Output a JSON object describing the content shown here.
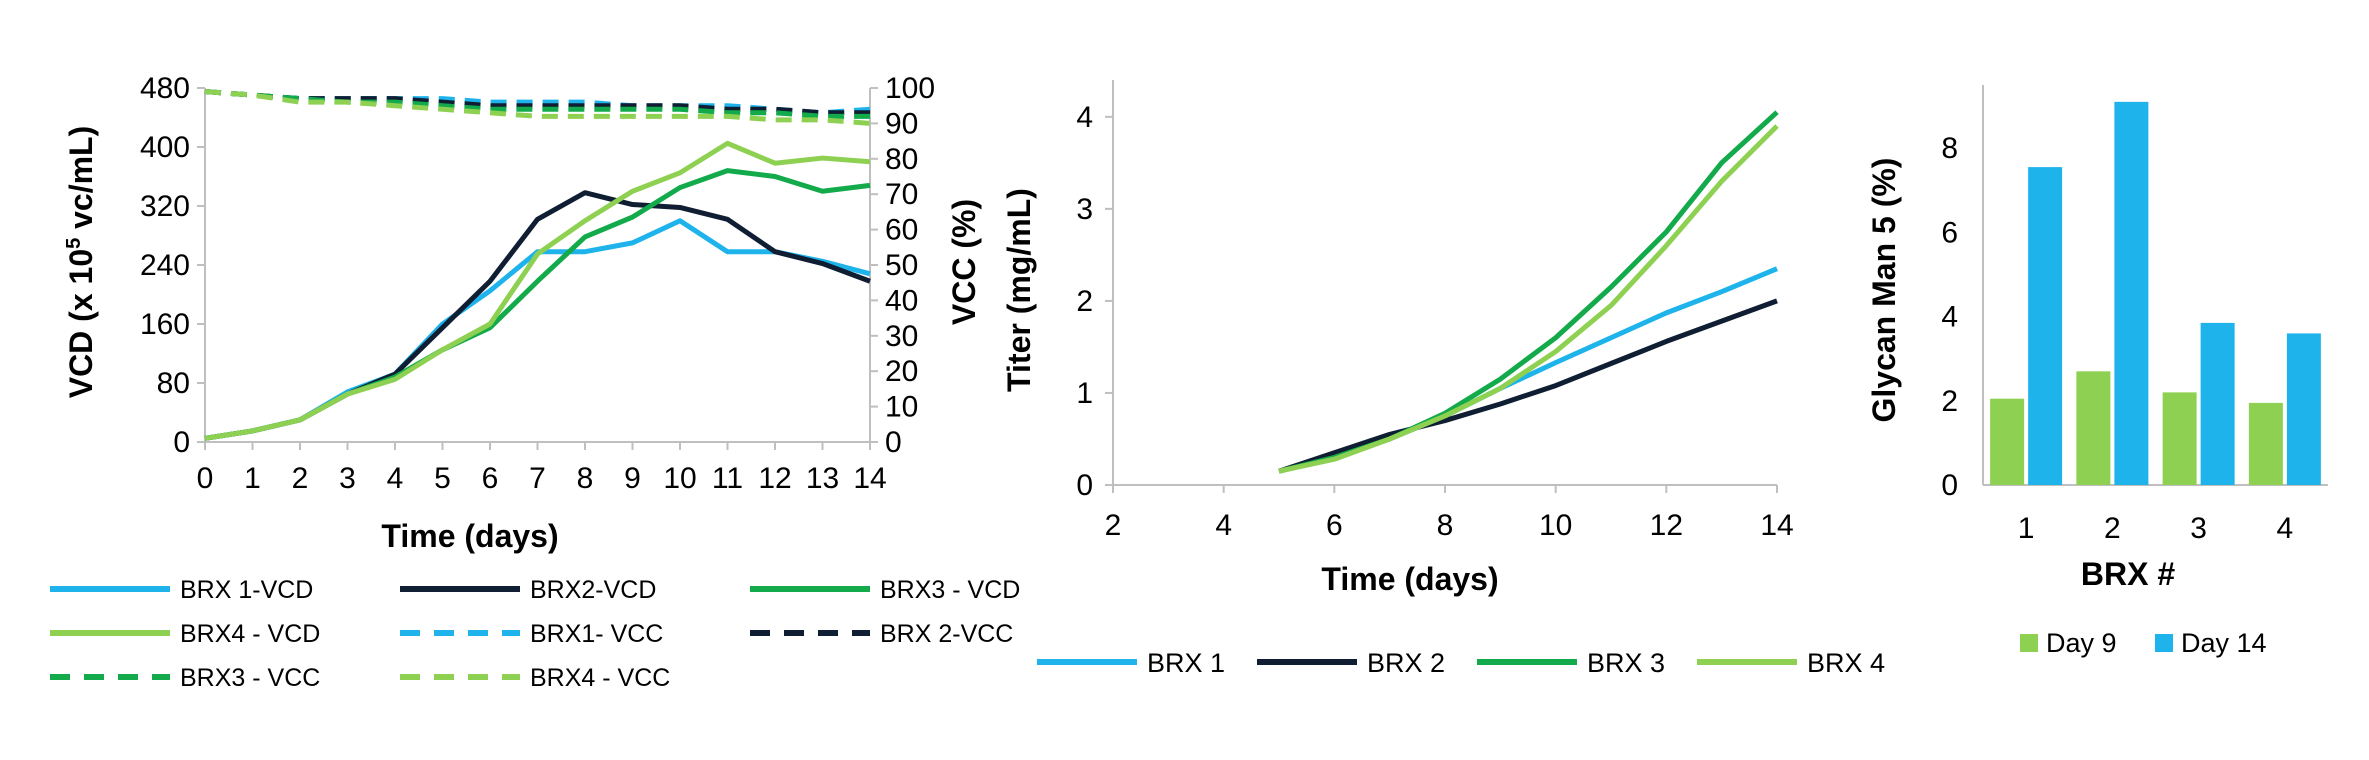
{
  "colors": {
    "brx1": "#1EB4EB",
    "brx2": "#0F1E32",
    "brx3": "#12AA4A",
    "brx4": "#8ED152",
    "day9": "#8ED152",
    "day14": "#1EB4EB",
    "axis": "#bfbfbf"
  },
  "chart_data": [
    {
      "type": "line",
      "xlabel": "Time (days)",
      "ylabel": "VCD (x 10⁵ vc/mL)",
      "y2label": "VCC (%)",
      "x": [
        0,
        1,
        2,
        3,
        4,
        5,
        6,
        7,
        8,
        9,
        10,
        11,
        12,
        13,
        14
      ],
      "xlim": [
        0,
        14
      ],
      "ylim": [
        0,
        480
      ],
      "y2lim": [
        0,
        100
      ],
      "yticks": [
        "0",
        "80",
        "160",
        "240",
        "320",
        "400",
        "480"
      ],
      "y2ticks": [
        "0",
        "10",
        "20",
        "30",
        "40",
        "50",
        "60",
        "70",
        "80",
        "90",
        "100"
      ],
      "xticks": [
        "0",
        "1",
        "2",
        "3",
        "4",
        "5",
        "6",
        "7",
        "8",
        "9",
        "10",
        "11",
        "12",
        "13",
        "14"
      ],
      "series": [
        {
          "name": "BRX 1-VCD",
          "axis": "left",
          "style": "solid",
          "color": "#1EB4EB",
          "values": [
            5,
            15,
            30,
            68,
            92,
            160,
            205,
            258,
            258,
            270,
            300,
            258,
            258,
            245,
            228
          ]
        },
        {
          "name": "BRX2-VCD",
          "axis": "left",
          "style": "solid",
          "color": "#0F1E32",
          "values": [
            5,
            15,
            30,
            65,
            92,
            155,
            218,
            302,
            338,
            322,
            318,
            302,
            258,
            242,
            218
          ]
        },
        {
          "name": "BRX3 - VCD",
          "axis": "left",
          "style": "solid",
          "color": "#12AA4A",
          "values": [
            5,
            15,
            30,
            65,
            88,
            125,
            155,
            218,
            278,
            305,
            345,
            368,
            360,
            340,
            348
          ]
        },
        {
          "name": "BRX4 - VCD",
          "axis": "left",
          "style": "solid",
          "color": "#8ED152",
          "values": [
            5,
            15,
            30,
            65,
            85,
            125,
            160,
            255,
            300,
            340,
            365,
            405,
            378,
            385,
            380
          ]
        },
        {
          "name": "BRX1- VCC",
          "axis": "right",
          "style": "dashed",
          "color": "#1EB4EB",
          "values": [
            99,
            98,
            97,
            97,
            97,
            97,
            96,
            96,
            96,
            95,
            95,
            95,
            94,
            93,
            94
          ]
        },
        {
          "name": "BRX 2-VCC",
          "axis": "right",
          "style": "dashed",
          "color": "#0F1E32",
          "values": [
            99,
            98,
            97,
            97,
            97,
            96,
            95,
            95,
            95,
            95,
            95,
            94,
            94,
            93,
            93
          ]
        },
        {
          "name": "BRX3 - VCC",
          "axis": "right",
          "style": "dashed",
          "color": "#12AA4A",
          "values": [
            99,
            98,
            97,
            96,
            96,
            95,
            94,
            94,
            94,
            94,
            94,
            93,
            93,
            92,
            92
          ]
        },
        {
          "name": "BRX4 - VCC",
          "axis": "right",
          "style": "dashed",
          "color": "#8ED152",
          "values": [
            99,
            98,
            96,
            96,
            95,
            94,
            93,
            92,
            92,
            92,
            92,
            92,
            91,
            91,
            90
          ]
        }
      ]
    },
    {
      "type": "line",
      "xlabel": "Time (days)",
      "ylabel": "Titer (mg/mL)",
      "x": [
        5,
        6,
        7,
        8,
        9,
        10,
        11,
        12,
        13,
        14
      ],
      "xlim": [
        2,
        14
      ],
      "ylim": [
        0,
        4.4
      ],
      "xticks": [
        "2",
        "4",
        "6",
        "8",
        "10",
        "12",
        "14"
      ],
      "yticks": [
        "0",
        "1",
        "2",
        "3",
        "4"
      ],
      "series": [
        {
          "name": "BRX 1",
          "color": "#1EB4EB",
          "values": [
            0.15,
            0.3,
            0.5,
            0.75,
            1.05,
            1.33,
            1.6,
            1.87,
            2.1,
            2.35
          ]
        },
        {
          "name": "BRX 2",
          "color": "#0F1E32",
          "values": [
            0.15,
            0.35,
            0.55,
            0.7,
            0.88,
            1.08,
            1.32,
            1.56,
            1.78,
            2.0
          ]
        },
        {
          "name": "BRX 3",
          "color": "#12AA4A",
          "values": [
            0.15,
            0.3,
            0.5,
            0.78,
            1.15,
            1.6,
            2.15,
            2.75,
            3.5,
            4.05
          ]
        },
        {
          "name": "BRX 4",
          "color": "#8ED152",
          "values": [
            0.15,
            0.28,
            0.5,
            0.75,
            1.05,
            1.45,
            1.95,
            2.6,
            3.3,
            3.9
          ]
        }
      ]
    },
    {
      "type": "bar",
      "xlabel": "BRX #",
      "ylabel": "Glycan Man 5 (%)",
      "categories": [
        "1",
        "2",
        "3",
        "4"
      ],
      "ylim": [
        0,
        9.5
      ],
      "yticks": [
        "0",
        "2",
        "4",
        "6",
        "8"
      ],
      "series": [
        {
          "name": "Day 9",
          "color": "#8ED152",
          "values": [
            2.05,
            2.7,
            2.2,
            1.95
          ]
        },
        {
          "name": "Day 14",
          "color": "#1EB4EB",
          "values": [
            7.55,
            9.1,
            3.85,
            3.6
          ]
        }
      ]
    }
  ]
}
